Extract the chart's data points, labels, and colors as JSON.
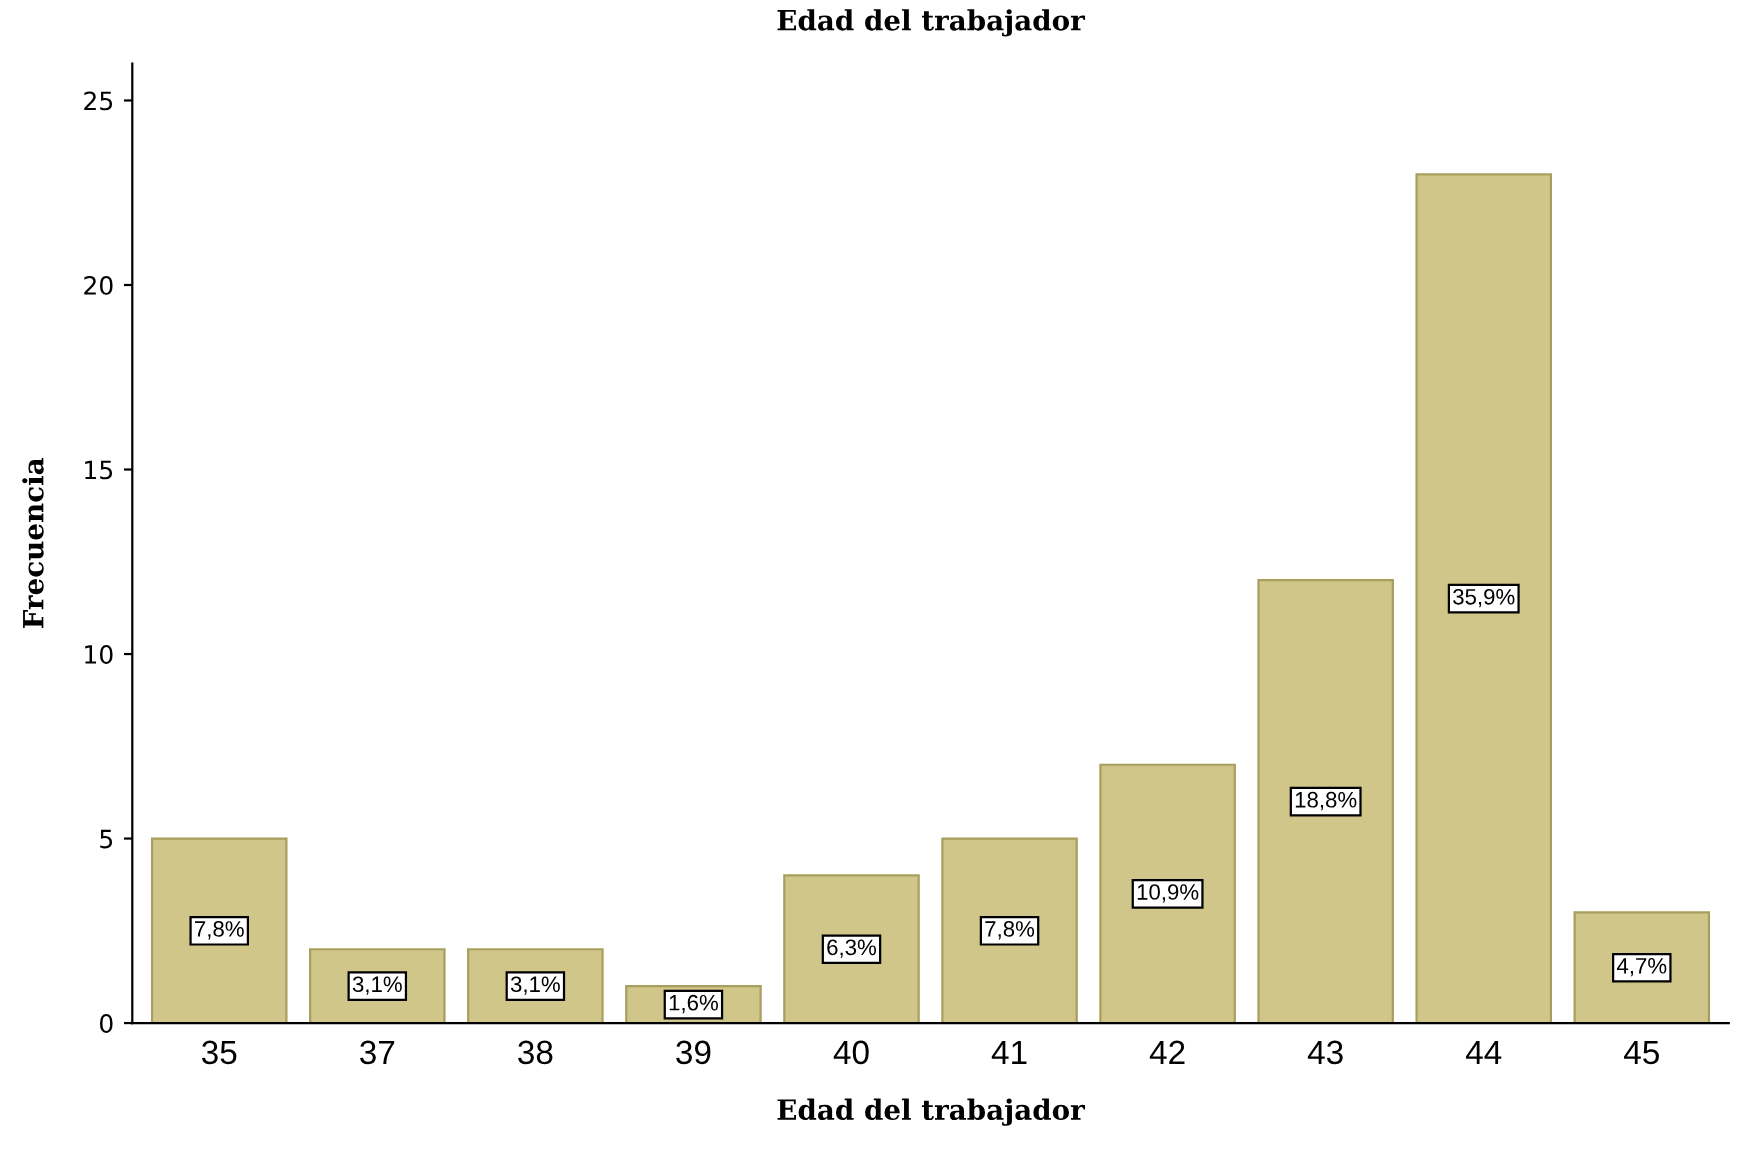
{
  "chart_data": {
    "type": "bar",
    "title": "Edad del trabajador",
    "xlabel": "Edad del trabajador",
    "ylabel": "Frecuencia",
    "categories": [
      "35",
      "37",
      "38",
      "39",
      "40",
      "41",
      "42",
      "43",
      "44",
      "45"
    ],
    "values": [
      5,
      2,
      2,
      1,
      4,
      5,
      7,
      12,
      23,
      3
    ],
    "annotations": [
      {
        "text": "7,8%",
        "x": "35",
        "y": 2.5
      },
      {
        "text": "3,1%",
        "x": "37",
        "y": 1
      },
      {
        "text": "3,1%",
        "x": "38",
        "y": 1
      },
      {
        "text": "1,6%",
        "x": "39",
        "y": 0.5
      },
      {
        "text": "6,3%",
        "x": "40",
        "y": 2
      },
      {
        "text": "7,8%",
        "x": "41",
        "y": 2.5
      },
      {
        "text": "10,9%",
        "x": "42",
        "y": 3.5
      },
      {
        "text": "18,8%",
        "x": "43",
        "y": 6
      },
      {
        "text": "35,9%",
        "x": "44",
        "y": 11.5
      },
      {
        "text": "4,7%",
        "x": "45",
        "y": 1.5
      }
    ],
    "color": "#d0c68a",
    "ylim": [
      0,
      26
    ],
    "yticks": [
      0,
      5,
      10,
      15,
      20,
      25
    ],
    "grid": false,
    "legend": false
  }
}
